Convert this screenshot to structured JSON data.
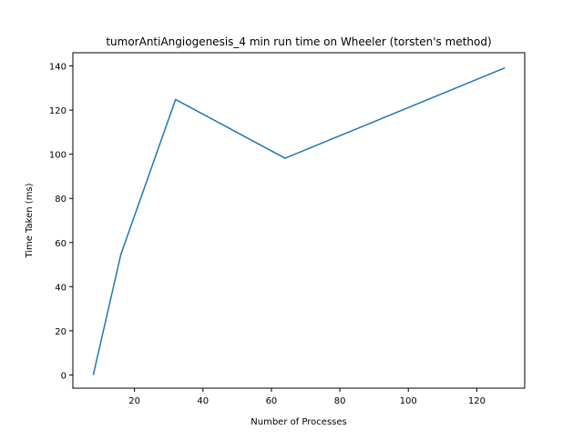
{
  "chart_data": {
    "type": "line",
    "title": "tumorAntiAngiogenesis_4 min run time on Wheeler (torsten's method)",
    "xlabel": "Number of Processes",
    "ylabel": "Time Taken (ms)",
    "xlim": [
      2,
      134
    ],
    "ylim": [
      -6,
      146
    ],
    "xticks": [
      20,
      40,
      60,
      80,
      100,
      120
    ],
    "yticks": [
      0,
      20,
      40,
      60,
      80,
      100,
      120,
      140
    ],
    "grid": false,
    "series": [
      {
        "color": "#1f77b4",
        "x": [
          8,
          16,
          32,
          64,
          128
        ],
        "y": [
          0.3,
          54.5,
          124.8,
          98.2,
          139
        ]
      }
    ]
  }
}
